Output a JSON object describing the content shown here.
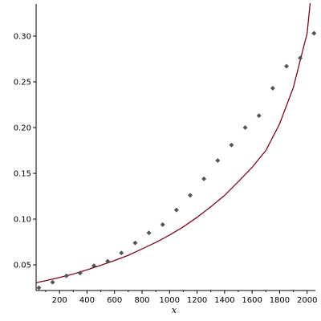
{
  "chart_data": {
    "type": "scatter",
    "xlabel": "x",
    "ylabel": "",
    "xlim": [
      30,
      2060
    ],
    "ylim": [
      0.022,
      0.335
    ],
    "grid": false,
    "x_ticks": [
      200,
      400,
      600,
      800,
      1000,
      1200,
      1400,
      1600,
      1800,
      2000
    ],
    "x_tick_labels": [
      "200",
      "400",
      "600",
      "800",
      "1000",
      "1200",
      "1400",
      "1600",
      "1800",
      "2000"
    ],
    "y_ticks": [
      0.05,
      0.1,
      0.15,
      0.2,
      0.25,
      0.3
    ],
    "y_tick_labels": [
      "0.05",
      "0.10",
      "0.15",
      "0.20",
      "0.25",
      "0.30"
    ],
    "series": [
      {
        "kind": "points",
        "marker": "diamond",
        "color": "#555555",
        "x": [
          50,
          150,
          250,
          350,
          450,
          550,
          650,
          750,
          850,
          950,
          1050,
          1150,
          1250,
          1350,
          1450,
          1550,
          1650,
          1750,
          1850,
          1950,
          2050
        ],
        "y": [
          0.025,
          0.031,
          0.038,
          0.041,
          0.049,
          0.054,
          0.063,
          0.074,
          0.085,
          0.094,
          0.11,
          0.126,
          0.144,
          0.164,
          0.181,
          0.2,
          0.213,
          0.243,
          0.267,
          0.276,
          0.303
        ]
      },
      {
        "kind": "curve",
        "color": "#7a0a1e",
        "x": [
          30,
          100,
          200,
          300,
          400,
          500,
          600,
          700,
          800,
          900,
          1000,
          1100,
          1200,
          1300,
          1400,
          1500,
          1600,
          1700,
          1800,
          1900,
          2000,
          2022
        ],
        "y": [
          0.0305,
          0.0328,
          0.0363,
          0.04,
          0.0445,
          0.0495,
          0.0548,
          0.0605,
          0.0674,
          0.0745,
          0.0826,
          0.0915,
          0.102,
          0.1135,
          0.126,
          0.141,
          0.1565,
          0.175,
          0.204,
          0.244,
          0.303,
          0.336
        ]
      }
    ]
  },
  "colors": {
    "axis": "#000000",
    "points": "#555555",
    "curve": "#7a0a1e"
  }
}
